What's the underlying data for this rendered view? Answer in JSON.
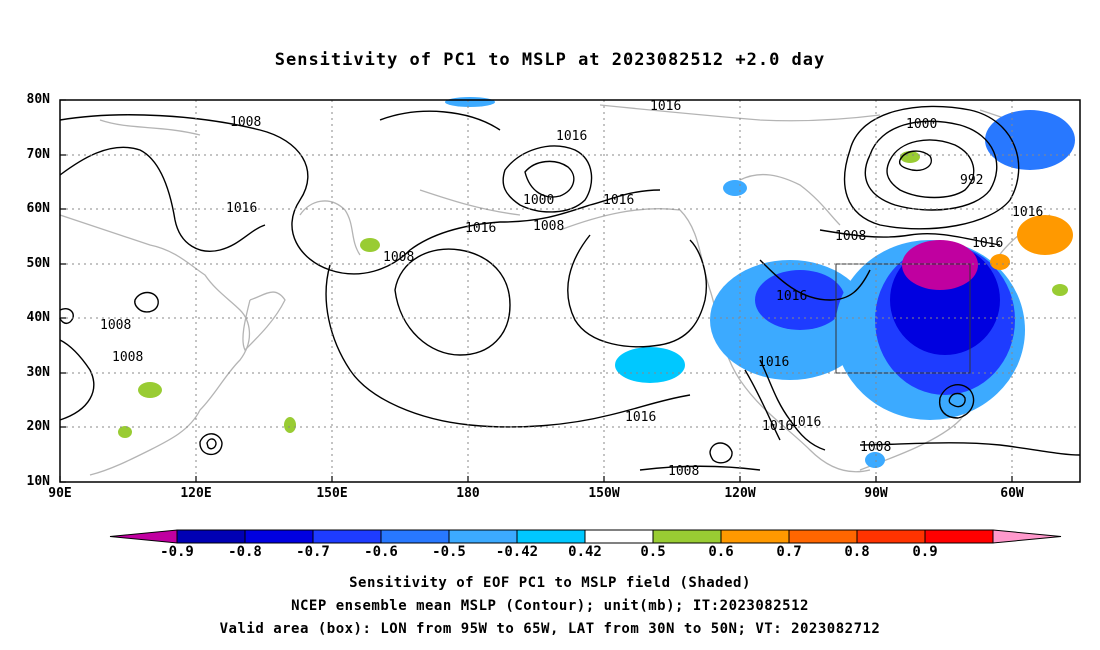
{
  "title": "Sensitivity of PC1 to MSLP at 2023082512 +2.0 day",
  "lat_labels": [
    "80N",
    "70N",
    "60N",
    "50N",
    "40N",
    "30N",
    "20N",
    "10N"
  ],
  "lon_labels": [
    "90E",
    "120E",
    "150E",
    "180",
    "150W",
    "120W",
    "90W",
    "60W"
  ],
  "contour_labels": [
    "1008",
    "1016",
    "1008",
    "1016",
    "1008",
    "1008",
    "1000",
    "1008",
    "1016",
    "1016",
    "1016",
    "1000",
    "992",
    "1016",
    "1008",
    "1016",
    "1016",
    "1016",
    "1016",
    "1016",
    "1016",
    "1008",
    "1008",
    "1008"
  ],
  "colorbar": {
    "labels": [
      "-0.9",
      "-0.8",
      "-0.7",
      "-0.6",
      "-0.5",
      "-0.42",
      "0.42",
      "0.5",
      "0.6",
      "0.7",
      "0.8",
      "0.9"
    ],
    "colors": [
      "#c000a0",
      "#0000b4",
      "#0000e0",
      "#1e3cff",
      "#2878ff",
      "#3caaff",
      "#00c8ff",
      "#ffffff",
      "#99cc33",
      "#ff9900",
      "#ff6600",
      "#ff3300",
      "#ff0000",
      "#ff99cc"
    ]
  },
  "captions": [
    "Sensitivity of EOF PC1 to MSLP field (Shaded)",
    "NCEP ensemble mean MSLP (Contour); unit(mb); IT:2023082512",
    "Valid area (box): LON from 95W to 65W, LAT from 30N to 50N; VT: 2023082712"
  ],
  "valid_box": {
    "lon_min": -95,
    "lon_max": -65,
    "lat_min": 30,
    "lat_max": 50
  },
  "map_extent": {
    "lon_min": 90,
    "lon_max": 315,
    "lat_min": 10,
    "lat_max": 80
  }
}
